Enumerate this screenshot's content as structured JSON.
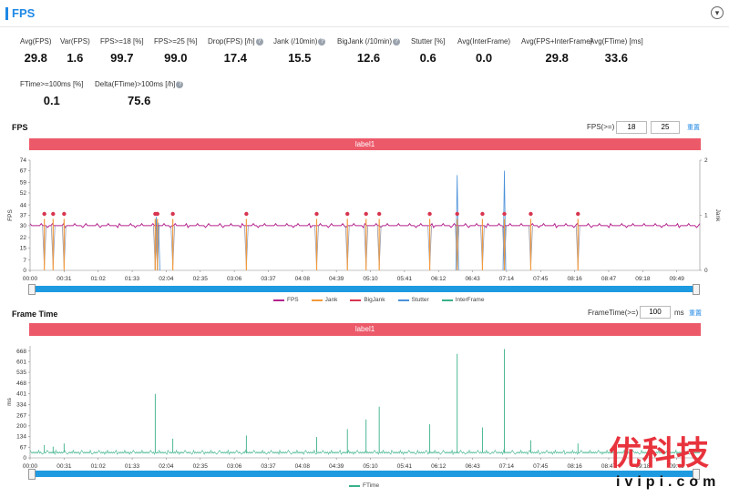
{
  "header": {
    "title": "FPS",
    "collapse_glyph": "▾"
  },
  "metrics_row1": [
    {
      "label": "Avg(FPS)",
      "value": "29.8",
      "help": false
    },
    {
      "label": "Var(FPS)",
      "value": "1.6",
      "help": false
    },
    {
      "label": "FPS>=18 [%]",
      "value": "99.7",
      "help": false
    },
    {
      "label": "FPS>=25 [%]",
      "value": "99.0",
      "help": false
    },
    {
      "label": "Drop(FPS) [/h]",
      "value": "17.4",
      "help": true
    },
    {
      "label": "Jank (/10min)",
      "value": "15.5",
      "help": true
    },
    {
      "label": "BigJank (/10min)",
      "value": "12.6",
      "help": true
    },
    {
      "label": "Stutter [%]",
      "value": "0.6",
      "help": false
    },
    {
      "label": "Avg(InterFrame)",
      "value": "0.0",
      "help": false
    },
    {
      "label": "Avg(FPS+InterFrame)",
      "value": "29.8",
      "help": false
    },
    {
      "label": "Avg(FTime) [ms]",
      "value": "33.6",
      "help": false
    }
  ],
  "metrics_row2": [
    {
      "label": "FTime>=100ms [%]",
      "value": "0.1",
      "help": false
    },
    {
      "label": "Delta(FTime)>100ms [/h]",
      "value": "75.6",
      "help": true
    }
  ],
  "help_glyph": "?",
  "fps_chart": {
    "section_title": "FPS",
    "threshold_label": "FPS(>=)",
    "threshold_1": "18",
    "threshold_2": "25",
    "reset_label": "重置",
    "band_label": "label1",
    "legend": [
      {
        "name": "FPS",
        "color": "#b5238e"
      },
      {
        "name": "Jank",
        "color": "#f39a3c"
      },
      {
        "name": "BigJank",
        "color": "#d8354f"
      },
      {
        "name": "Stutter",
        "color": "#4a90d9"
      },
      {
        "name": "InterFrame",
        "color": "#3ab08a"
      }
    ]
  },
  "ftime_chart": {
    "section_title": "Frame Time",
    "threshold_label": "FrameTime(>=)",
    "threshold_value": "100",
    "threshold_unit": "ms",
    "reset_label": "重置",
    "band_label": "label1",
    "legend": [
      {
        "name": "FTime",
        "color": "#3ab08a"
      }
    ]
  },
  "watermark": {
    "brand": "优科技",
    "url": "ivipi.com"
  },
  "chart_data": [
    {
      "type": "line",
      "title": "FPS",
      "xlabel": "",
      "ylabel": "FPS",
      "y2label": "Jank",
      "x_ticks": [
        "00:00",
        "00:31",
        "01:02",
        "01:33",
        "02:04",
        "02:35",
        "03:06",
        "03:37",
        "04:08",
        "04:39",
        "05:10",
        "05:41",
        "06:12",
        "06:43",
        "07:14",
        "07:45",
        "08:16",
        "08:47",
        "09:18",
        "09:49"
      ],
      "x_range_s": [
        0,
        610
      ],
      "y_ticks": [
        0,
        7,
        15,
        22,
        30,
        37,
        44,
        52,
        59,
        67,
        74
      ],
      "ylim": [
        0,
        74
      ],
      "y2_ticks": [
        0,
        1,
        2
      ],
      "y2lim": [
        0,
        2
      ],
      "series": [
        {
          "name": "FPS",
          "baseline": 30,
          "dips_at_s": [
            13,
            21,
            31,
            114,
            116,
            130,
            197,
            261,
            289,
            306,
            318,
            364,
            389,
            412,
            432,
            456,
            499
          ]
        },
        {
          "name": "Jank",
          "events_at_s": [
            13,
            21,
            31,
            114,
            116,
            130,
            197,
            261,
            289,
            306,
            318,
            364,
            389,
            412,
            432,
            456,
            499
          ]
        },
        {
          "name": "Stutter",
          "spikes": [
            {
              "t": 389,
              "v": 64
            },
            {
              "t": 432,
              "v": 67
            },
            {
              "t": 115,
              "v": 36
            },
            {
              "t": 117,
              "v": 32
            }
          ]
        }
      ]
    },
    {
      "type": "line",
      "title": "Frame Time",
      "xlabel": "",
      "ylabel": "ms",
      "x_ticks": [
        "00:00",
        "00:31",
        "01:02",
        "01:33",
        "02:04",
        "02:35",
        "03:06",
        "03:37",
        "04:08",
        "04:39",
        "05:10",
        "05:41",
        "06:12",
        "06:43",
        "07:14",
        "07:45",
        "08:16",
        "08:47",
        "09:18",
        "09:49"
      ],
      "x_range_s": [
        0,
        610
      ],
      "y_ticks": [
        0,
        67,
        134,
        200,
        267,
        334,
        401,
        468,
        535,
        601,
        668
      ],
      "ylim": [
        0,
        700
      ],
      "series": [
        {
          "name": "FTime",
          "baseline": 33,
          "spikes": [
            {
              "t": 13,
              "v": 80
            },
            {
              "t": 21,
              "v": 70
            },
            {
              "t": 31,
              "v": 90
            },
            {
              "t": 114,
              "v": 400
            },
            {
              "t": 130,
              "v": 120
            },
            {
              "t": 197,
              "v": 140
            },
            {
              "t": 261,
              "v": 130
            },
            {
              "t": 289,
              "v": 180
            },
            {
              "t": 306,
              "v": 240
            },
            {
              "t": 318,
              "v": 320
            },
            {
              "t": 364,
              "v": 210
            },
            {
              "t": 389,
              "v": 650
            },
            {
              "t": 412,
              "v": 190
            },
            {
              "t": 432,
              "v": 680
            },
            {
              "t": 456,
              "v": 110
            },
            {
              "t": 499,
              "v": 90
            }
          ]
        }
      ]
    }
  ]
}
